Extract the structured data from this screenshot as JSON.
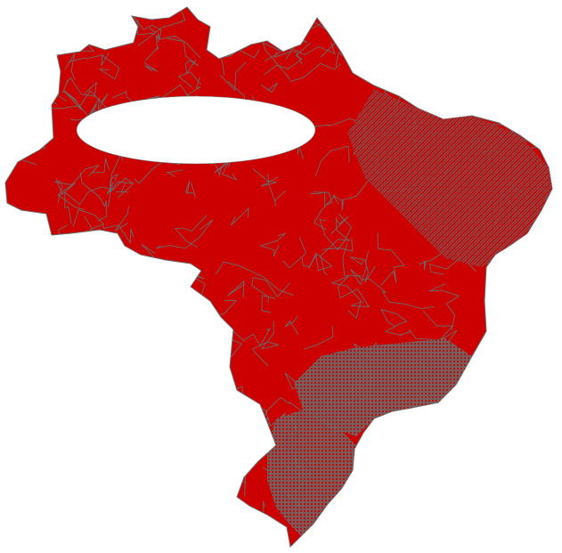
{
  "map": {
    "fill_color": "#cc0000",
    "border_color": "#6b6b6b",
    "blank_region_color": "#ffffff",
    "background_color": "#ffffff"
  }
}
